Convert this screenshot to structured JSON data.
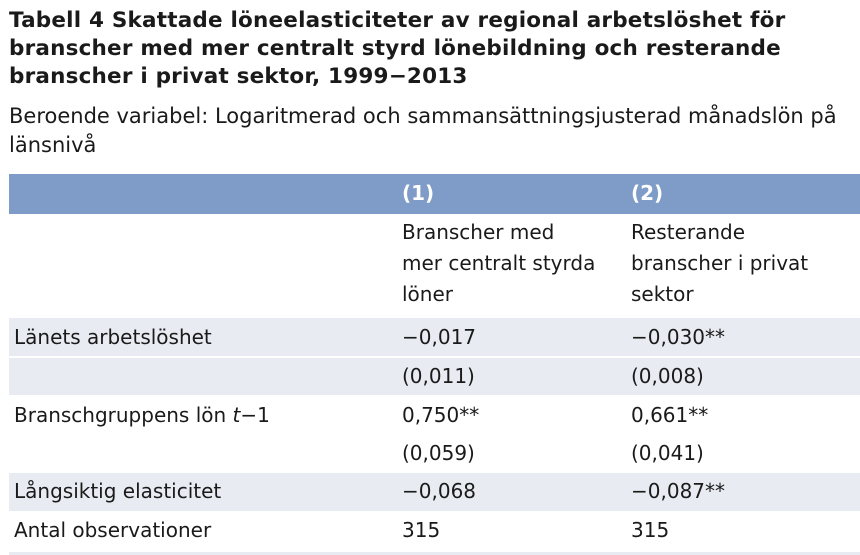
{
  "title": "Tabell 4 Skattade löneelasticiteter av regional arbetslöshet för branscher med mer centralt styrd lönebildning och resterande branscher i privat sektor, 1999−2013",
  "subtitle": "Beroende variabel: Logaritmerad och sammansättningsjusterad månadslön på länsnivå",
  "table": {
    "columns": [
      {
        "number": "(1)",
        "description": "Branscher med\nmer centralt styrda\nlöner"
      },
      {
        "number": "(2)",
        "description": "Resterande\nbranscher i privat\nsektor"
      }
    ],
    "rows": [
      {
        "label": "Länets arbetslöshet",
        "col1": "−0,017",
        "col2": "−0,030**"
      },
      {
        "label": "",
        "col1": "(0,011)",
        "col2": "(0,008)"
      },
      {
        "label_pre": "Branschgruppens lön ",
        "label_var": "t",
        "label_post": "−1",
        "col1": "0,750**",
        "col2": "0,661**"
      },
      {
        "label": "",
        "col1": "(0,059)",
        "col2": "(0,041)"
      },
      {
        "label": "Långsiktig elasticitet",
        "col1": "−0,068",
        "col2": "−0,087**"
      },
      {
        "label": "Antal observationer",
        "col1": "315",
        "col2": "315"
      }
    ]
  }
}
